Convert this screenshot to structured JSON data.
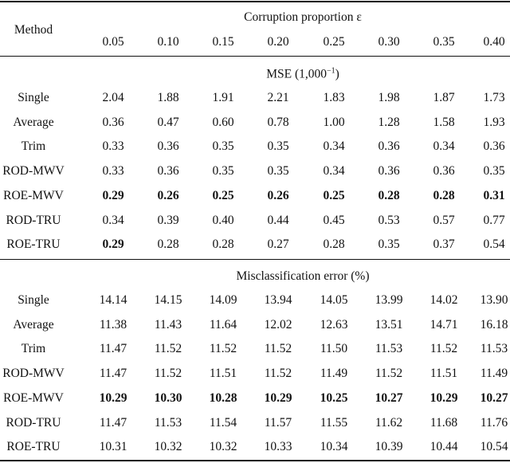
{
  "header": {
    "method_label": "Method",
    "group_label": "Corruption proportion ε",
    "proportions": [
      "0.05",
      "0.10",
      "0.15",
      "0.20",
      "0.25",
      "0.30",
      "0.35",
      "0.40"
    ]
  },
  "sections": [
    {
      "title": "MSE (1,000",
      "title_sup": "−1",
      "title_close": ")",
      "rows": [
        {
          "method": "Single",
          "values": [
            "2.04",
            "1.88",
            "1.91",
            "2.21",
            "1.83",
            "1.98",
            "1.87",
            "1.73"
          ],
          "bold": []
        },
        {
          "method": "Average",
          "values": [
            "0.36",
            "0.47",
            "0.60",
            "0.78",
            "1.00",
            "1.28",
            "1.58",
            "1.93"
          ],
          "bold": []
        },
        {
          "method": "Trim",
          "values": [
            "0.33",
            "0.36",
            "0.35",
            "0.35",
            "0.34",
            "0.36",
            "0.34",
            "0.36"
          ],
          "bold": []
        },
        {
          "method": "ROD-MWV",
          "values": [
            "0.33",
            "0.36",
            "0.35",
            "0.35",
            "0.34",
            "0.36",
            "0.36",
            "0.35"
          ],
          "bold": []
        },
        {
          "method": "ROE-MWV",
          "values": [
            "0.29",
            "0.26",
            "0.25",
            "0.26",
            "0.25",
            "0.28",
            "0.28",
            "0.31"
          ],
          "bold": [
            0,
            1,
            2,
            3,
            4,
            5,
            6,
            7
          ]
        },
        {
          "method": "ROD-TRU",
          "values": [
            "0.34",
            "0.39",
            "0.40",
            "0.44",
            "0.45",
            "0.53",
            "0.57",
            "0.77"
          ],
          "bold": []
        },
        {
          "method": "ROE-TRU",
          "values": [
            "0.29",
            "0.28",
            "0.28",
            "0.27",
            "0.28",
            "0.35",
            "0.37",
            "0.54"
          ],
          "bold": [
            0
          ]
        }
      ]
    },
    {
      "title": "Misclassification error (%)",
      "rows": [
        {
          "method": "Single",
          "values": [
            "14.14",
            "14.15",
            "14.09",
            "13.94",
            "14.05",
            "13.99",
            "14.02",
            "13.90"
          ],
          "bold": []
        },
        {
          "method": "Average",
          "values": [
            "11.38",
            "11.43",
            "11.64",
            "12.02",
            "12.63",
            "13.51",
            "14.71",
            "16.18"
          ],
          "bold": []
        },
        {
          "method": "Trim",
          "values": [
            "11.47",
            "11.52",
            "11.52",
            "11.52",
            "11.50",
            "11.53",
            "11.52",
            "11.53"
          ],
          "bold": []
        },
        {
          "method": "ROD-MWV",
          "values": [
            "11.47",
            "11.52",
            "11.51",
            "11.52",
            "11.49",
            "11.52",
            "11.51",
            "11.49"
          ],
          "bold": []
        },
        {
          "method": "ROE-MWV",
          "values": [
            "10.29",
            "10.30",
            "10.28",
            "10.29",
            "10.25",
            "10.27",
            "10.29",
            "10.27"
          ],
          "bold": [
            0,
            1,
            2,
            3,
            4,
            5,
            6,
            7
          ]
        },
        {
          "method": "ROD-TRU",
          "values": [
            "11.47",
            "11.53",
            "11.54",
            "11.57",
            "11.55",
            "11.62",
            "11.68",
            "11.76"
          ],
          "bold": []
        },
        {
          "method": "ROE-TRU",
          "values": [
            "10.31",
            "10.32",
            "10.32",
            "10.33",
            "10.34",
            "10.39",
            "10.44",
            "10.54"
          ],
          "bold": []
        }
      ]
    }
  ]
}
